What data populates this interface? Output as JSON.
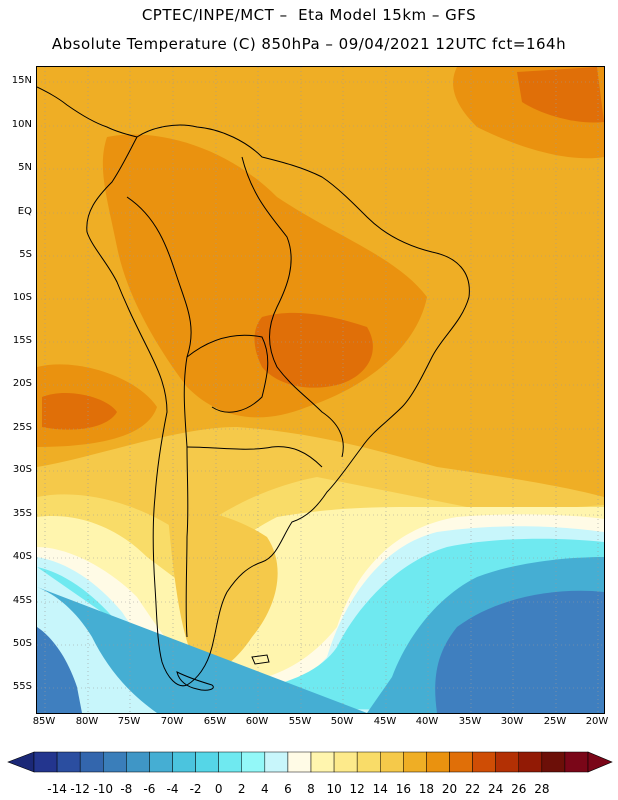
{
  "header": {
    "line1": "CPTEC/INPE/MCT –  Eta Model 15km – GFS",
    "line2": "Absolute Temperature (C) 850hPa – 09/04/2021 12UTC fct=164h"
  },
  "axes": {
    "lat_labels": [
      "15N",
      "10N",
      "5N",
      "EQ",
      "5S",
      "10S",
      "15S",
      "20S",
      "25S",
      "30S",
      "35S",
      "40S",
      "45S",
      "50S",
      "55S"
    ],
    "lon_labels": [
      "85W",
      "80W",
      "75W",
      "70W",
      "65W",
      "60W",
      "55W",
      "50W",
      "45W",
      "40W",
      "35W",
      "30W",
      "25W",
      "20W"
    ]
  },
  "colorbar": {
    "labels": [
      "-14",
      "-12",
      "-10",
      "-8",
      "-6",
      "-4",
      "-2",
      "0",
      "2",
      "4",
      "6",
      "8",
      "10",
      "12",
      "14",
      "16",
      "18",
      "20",
      "22",
      "24",
      "26",
      "28"
    ],
    "colors": [
      "#23358e",
      "#2b4ea0",
      "#3366ad",
      "#3a7eba",
      "#3f96c6",
      "#45aed3",
      "#4bc4de",
      "#55d6e7",
      "#6fe9f0",
      "#93f8f8",
      "#c8f6fb",
      "#fffbe6",
      "#fff5ae",
      "#fdea8b",
      "#f9dc68",
      "#f5c94a",
      "#efae25",
      "#ea920f",
      "#e06f08",
      "#cf4d05",
      "#b33004",
      "#921a05",
      "#6c0f08",
      "#7a0618"
    ],
    "under_color": "#1b2877",
    "over_color": "#7a0618"
  },
  "field_colors": {
    "deep_blue": "#3f7fbf",
    "mid_blue": "#45aed3",
    "cyan": "#6fe9f0",
    "light_cyan": "#c8f6fb",
    "cream": "#fffbe6",
    "light_yellow": "#fff5ae",
    "yellow": "#f9dc68",
    "gold": "#f5c94a",
    "orange": "#efae25",
    "dark_orange": "#ea920f",
    "red_orange": "#e06f08",
    "brown_red": "#cf4d05"
  }
}
